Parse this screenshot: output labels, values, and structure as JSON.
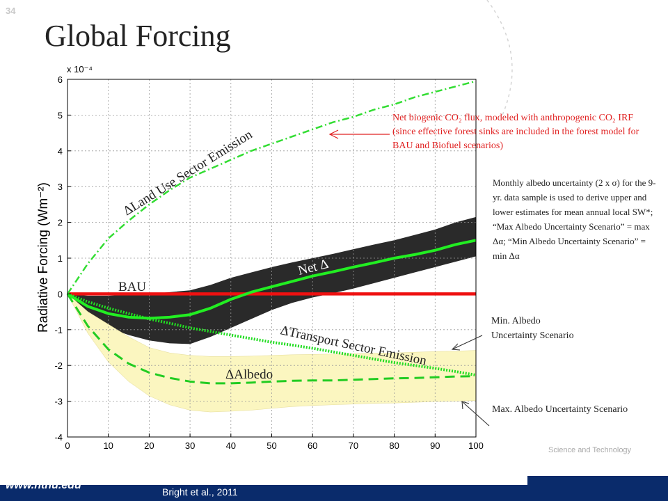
{
  "slide": {
    "number": "34",
    "title": "Global Forcing",
    "citation": "Bright et al., 2011",
    "website": "www.ntnu.edu",
    "university_text": "Science and Technology"
  },
  "annotations": {
    "red_note": "Net biogenic CO₂ flux, modeled with anthropogenic CO₂ IRF (since effective forest sinks are included in the forest model for BAU and Biofuel scenarios)",
    "uncertainty_note": "Monthly albedo uncertainty (2 x σ) for the 9-yr. data sample is used to derive upper and lower estimates for mean annual local SW*; “Max Albedo Uncertainty Scenario” = max Δα; “Min Albedo Uncertainty Scenario” = min Δα",
    "min_note": "Min. Albedo Uncertainty Scenario",
    "max_note": "Max. Albedo Uncertainty Scenario"
  },
  "colors": {
    "land_use": "#33dd33",
    "net": "#22ee22",
    "transport": "#22dd22",
    "albedo": "#22cc22",
    "bau": "#ee1111",
    "net_band": "#2a2a2a",
    "albedo_band": "#fbf6c0",
    "red_note": "#e02020",
    "footer": "#0a2b6b"
  },
  "chart_data": {
    "type": "line",
    "title": "",
    "xlabel": "",
    "ylabel": "Radiative Forcing (Wm⁻²)",
    "y_multiplier": "x 10⁻⁴",
    "xlim": [
      0,
      100
    ],
    "ylim": [
      -4,
      6
    ],
    "xticks": [
      0,
      10,
      20,
      30,
      40,
      50,
      60,
      70,
      80,
      90,
      100
    ],
    "yticks": [
      -4,
      -3,
      -2,
      -1,
      0,
      1,
      2,
      3,
      4,
      5,
      6
    ],
    "grid": true,
    "x": [
      0,
      5,
      10,
      15,
      20,
      25,
      30,
      35,
      40,
      45,
      50,
      55,
      60,
      65,
      70,
      75,
      80,
      85,
      90,
      95,
      100
    ],
    "series": [
      {
        "name": "ΔLand Use Sector Emission",
        "style": "dash-dot",
        "values": [
          0,
          0.85,
          1.55,
          2.05,
          2.5,
          2.9,
          3.25,
          3.5,
          3.75,
          4.0,
          4.2,
          4.4,
          4.6,
          4.8,
          4.95,
          5.15,
          5.3,
          5.5,
          5.65,
          5.8,
          5.95
        ]
      },
      {
        "name": "Net Δ",
        "style": "solid",
        "values": [
          0,
          -0.35,
          -0.55,
          -0.65,
          -0.68,
          -0.65,
          -0.58,
          -0.4,
          -0.15,
          0.05,
          0.2,
          0.35,
          0.5,
          0.62,
          0.75,
          0.87,
          1.0,
          1.1,
          1.22,
          1.38,
          1.5
        ]
      },
      {
        "name": "ΔTransport Sector Emission",
        "style": "dotted",
        "values": [
          0,
          -0.22,
          -0.4,
          -0.55,
          -0.7,
          -0.82,
          -0.95,
          -1.05,
          -1.15,
          -1.25,
          -1.35,
          -1.43,
          -1.52,
          -1.62,
          -1.72,
          -1.82,
          -1.92,
          -2.0,
          -2.08,
          -2.17,
          -2.27
        ]
      },
      {
        "name": "ΔAlbedo",
        "style": "dashed",
        "values": [
          0,
          -0.9,
          -1.55,
          -1.95,
          -2.2,
          -2.35,
          -2.45,
          -2.5,
          -2.5,
          -2.48,
          -2.45,
          -2.43,
          -2.42,
          -2.42,
          -2.4,
          -2.38,
          -2.36,
          -2.35,
          -2.33,
          -2.31,
          -2.3
        ]
      },
      {
        "name": "BAU",
        "style": "solid",
        "values": [
          0,
          0,
          0,
          0,
          0,
          0,
          0,
          0,
          0,
          0,
          0,
          0,
          0,
          0,
          0,
          0,
          0,
          0,
          0,
          0,
          0
        ]
      }
    ],
    "bands": [
      {
        "of": "Net Δ",
        "upper": [
          0,
          -0.05,
          -0.05,
          -0.02,
          0,
          0.05,
          0.1,
          0.25,
          0.45,
          0.6,
          0.75,
          0.88,
          1.0,
          1.12,
          1.25,
          1.38,
          1.5,
          1.65,
          1.8,
          2.0,
          2.15
        ],
        "lower": [
          0,
          -0.55,
          -0.95,
          -1.15,
          -1.3,
          -1.38,
          -1.4,
          -1.2,
          -0.95,
          -0.7,
          -0.45,
          -0.25,
          -0.1,
          0.02,
          0.15,
          0.3,
          0.45,
          0.6,
          0.75,
          0.9,
          1.05
        ]
      },
      {
        "of": "ΔAlbedo",
        "upper": [
          0,
          -0.5,
          -0.85,
          -1.2,
          -1.5,
          -1.65,
          -1.72,
          -1.75,
          -1.75,
          -1.74,
          -1.72,
          -1.7,
          -1.69,
          -1.68,
          -1.67,
          -1.66,
          -1.65,
          -1.63,
          -1.61,
          -1.6,
          -1.58
        ],
        "lower": [
          0,
          -1.1,
          -1.9,
          -2.45,
          -2.85,
          -3.1,
          -3.25,
          -3.3,
          -3.28,
          -3.25,
          -3.2,
          -3.15,
          -3.12,
          -3.1,
          -3.08,
          -3.06,
          -3.05,
          -3.03,
          -3.01,
          -3.0,
          -2.98
        ]
      }
    ],
    "labels": {
      "land_use": "ΔLand Use Sector  Emission",
      "net": "Net Δ",
      "bau": "BAU",
      "transport": "ΔTransport Sector Emission",
      "albedo": "ΔAlbedo"
    }
  }
}
